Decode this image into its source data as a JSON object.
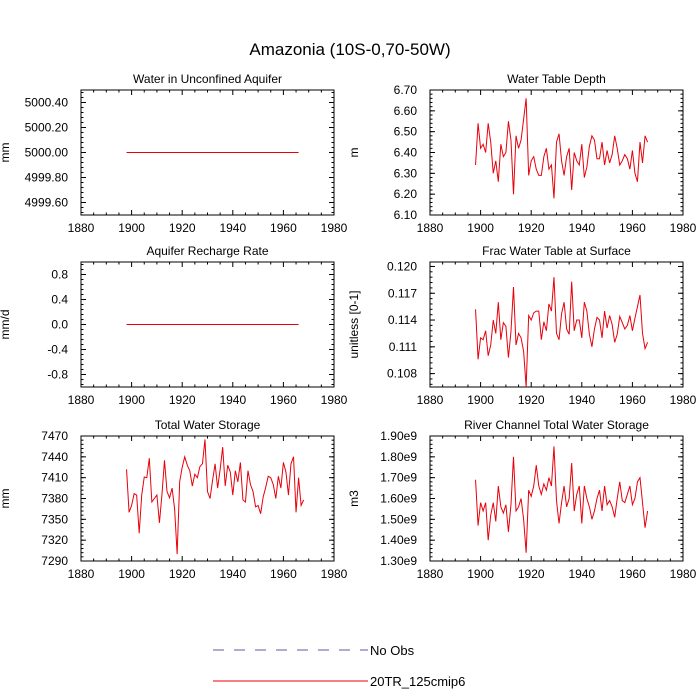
{
  "title": "Amazonia (10S-0,70-50W)",
  "legend": {
    "entries": [
      {
        "label": "No Obs",
        "color": "#5a5aa8",
        "dash": true
      },
      {
        "label": "20TR_125cmip6",
        "color": "#e8000b",
        "dash": false
      }
    ]
  },
  "chart_data": [
    {
      "type": "line",
      "title": "Water in Unconfined Aquifer",
      "xlabel": "",
      "ylabel": "mm",
      "xlim": [
        1880,
        1980
      ],
      "xticks": [
        1880,
        1900,
        1920,
        1940,
        1960,
        1980
      ],
      "ylim": [
        4999.5,
        5000.5
      ],
      "yticks": [
        4999.6,
        4999.8,
        5000.0,
        5000.2,
        5000.4
      ],
      "ytick_labels": [
        "4999.60",
        "4999.80",
        "5000.00",
        "5000.20",
        "5000.40"
      ],
      "series": [
        {
          "name": "20TR_125cmip6",
          "x_start": 1898,
          "values": [
            5000,
            5000,
            5000,
            5000,
            5000,
            5000,
            5000,
            5000,
            5000,
            5000,
            5000,
            5000,
            5000,
            5000,
            5000,
            5000,
            5000,
            5000,
            5000,
            5000,
            5000,
            5000,
            5000,
            5000,
            5000,
            5000,
            5000,
            5000,
            5000,
            5000,
            5000,
            5000,
            5000,
            5000,
            5000,
            5000,
            5000,
            5000,
            5000,
            5000,
            5000,
            5000,
            5000,
            5000,
            5000,
            5000,
            5000,
            5000,
            5000,
            5000,
            5000,
            5000,
            5000,
            5000,
            5000,
            5000,
            5000,
            5000,
            5000,
            5000,
            5000,
            5000,
            5000,
            5000,
            5000,
            5000,
            5000,
            5000,
            5000
          ]
        }
      ]
    },
    {
      "type": "line",
      "title": "Water Table Depth",
      "xlabel": "",
      "ylabel": "m",
      "xlim": [
        1880,
        1980
      ],
      "xticks": [
        1880,
        1900,
        1920,
        1940,
        1960,
        1980
      ],
      "ylim": [
        6.1,
        6.7
      ],
      "yticks": [
        6.1,
        6.2,
        6.3,
        6.4,
        6.5,
        6.6,
        6.7
      ],
      "ytick_labels": [
        "6.10",
        "6.20",
        "6.30",
        "6.40",
        "6.50",
        "6.60",
        "6.70"
      ],
      "series": [
        {
          "name": "20TR_125cmip6",
          "x_start": 1898,
          "values": [
            6.34,
            6.54,
            6.42,
            6.44,
            6.4,
            6.54,
            6.45,
            6.3,
            6.36,
            6.26,
            6.44,
            6.38,
            6.4,
            6.55,
            6.46,
            6.2,
            6.48,
            6.42,
            6.46,
            6.56,
            6.66,
            6.29,
            6.36,
            6.38,
            6.32,
            6.29,
            6.29,
            6.38,
            6.42,
            6.32,
            6.34,
            6.18,
            6.45,
            6.49,
            6.36,
            6.29,
            6.38,
            6.42,
            6.22,
            6.4,
            6.36,
            6.34,
            6.44,
            6.28,
            6.33,
            6.43,
            6.48,
            6.46,
            6.37,
            6.37,
            6.45,
            6.34,
            6.41,
            6.35,
            6.39,
            6.48,
            6.42,
            6.34,
            6.36,
            6.39,
            6.37,
            6.32,
            6.41,
            6.3,
            6.26,
            6.45,
            6.35,
            6.48,
            6.45
          ]
        }
      ]
    },
    {
      "type": "line",
      "title": "Aquifer Recharge Rate",
      "xlabel": "",
      "ylabel": "mm/d",
      "xlim": [
        1880,
        1980
      ],
      "xticks": [
        1880,
        1900,
        1920,
        1940,
        1960,
        1980
      ],
      "ylim": [
        -1.0,
        1.0
      ],
      "yticks": [
        -0.8,
        -0.4,
        0.0,
        0.4,
        0.8
      ],
      "ytick_labels": [
        "-0.8",
        "-0.4",
        "0.0",
        "0.4",
        "0.8"
      ],
      "series": [
        {
          "name": "20TR_125cmip6",
          "x_start": 1898,
          "values": [
            0,
            0,
            0,
            0,
            0,
            0,
            0,
            0,
            0,
            0,
            0,
            0,
            0,
            0,
            0,
            0,
            0,
            0,
            0,
            0,
            0,
            0,
            0,
            0,
            0,
            0,
            0,
            0,
            0,
            0,
            0,
            0,
            0,
            0,
            0,
            0,
            0,
            0,
            0,
            0,
            0,
            0,
            0,
            0,
            0,
            0,
            0,
            0,
            0,
            0,
            0,
            0,
            0,
            0,
            0,
            0,
            0,
            0,
            0,
            0,
            0,
            0,
            0,
            0,
            0,
            0,
            0,
            0,
            0
          ]
        }
      ]
    },
    {
      "type": "line",
      "title": "Frac Water Table at Surface",
      "xlabel": "",
      "ylabel": "unitless [0-1]",
      "xlim": [
        1880,
        1980
      ],
      "xticks": [
        1880,
        1900,
        1920,
        1940,
        1960,
        1980
      ],
      "ylim": [
        0.1065,
        0.1205
      ],
      "yticks": [
        0.108,
        0.111,
        0.114,
        0.117,
        0.12
      ],
      "ytick_labels": [
        "0.108",
        "0.111",
        "0.114",
        "0.117",
        "0.120"
      ],
      "series": [
        {
          "name": "20TR_125cmip6",
          "x_start": 1898,
          "values": [
            0.1152,
            0.1096,
            0.112,
            0.1118,
            0.1128,
            0.11,
            0.1112,
            0.114,
            0.1125,
            0.116,
            0.1118,
            0.1137,
            0.1133,
            0.1098,
            0.1127,
            0.1177,
            0.1112,
            0.1125,
            0.112,
            0.1105,
            0.1065,
            0.1145,
            0.114,
            0.1148,
            0.115,
            0.115,
            0.1118,
            0.1138,
            0.1128,
            0.1158,
            0.115,
            0.1188,
            0.1125,
            0.1118,
            0.1147,
            0.116,
            0.113,
            0.1124,
            0.1183,
            0.1128,
            0.114,
            0.114,
            0.112,
            0.116,
            0.115,
            0.1124,
            0.111,
            0.113,
            0.1143,
            0.114,
            0.112,
            0.115,
            0.1131,
            0.1145,
            0.1135,
            0.1115,
            0.1124,
            0.1144,
            0.1137,
            0.113,
            0.1134,
            0.1145,
            0.1128,
            0.1142,
            0.1155,
            0.1168,
            0.1125,
            0.1108,
            0.1115
          ]
        }
      ]
    },
    {
      "type": "line",
      "title": "Total Water Storage",
      "xlabel": "",
      "ylabel": "mm",
      "xlim": [
        1880,
        1980
      ],
      "xticks": [
        1880,
        1900,
        1920,
        1940,
        1960,
        1980
      ],
      "ylim": [
        7290,
        7470
      ],
      "yticks": [
        7290,
        7320,
        7350,
        7380,
        7410,
        7440,
        7470
      ],
      "ytick_labels": [
        "7290",
        "7320",
        "7350",
        "7380",
        "7410",
        "7440",
        "7470"
      ],
      "series": [
        {
          "name": "20TR_125cmip6",
          "x_start": 1898,
          "values": [
            7422,
            7360,
            7370,
            7387,
            7385,
            7330,
            7385,
            7411,
            7410,
            7438,
            7375,
            7380,
            7385,
            7345,
            7386,
            7435,
            7390,
            7381,
            7395,
            7365,
            7300,
            7404,
            7425,
            7440,
            7428,
            7420,
            7398,
            7415,
            7410,
            7426,
            7430,
            7465,
            7390,
            7380,
            7406,
            7430,
            7395,
            7422,
            7454,
            7398,
            7428,
            7418,
            7385,
            7420,
            7404,
            7432,
            7378,
            7375,
            7420,
            7400,
            7390,
            7368,
            7370,
            7358,
            7382,
            7396,
            7412,
            7410,
            7400,
            7380,
            7412,
            7395,
            7432,
            7418,
            7385,
            7430,
            7440,
            7360,
            7410,
            7370,
            7378
          ]
        }
      ]
    },
    {
      "type": "line",
      "title": "River Channel Total Water Storage",
      "xlabel": "",
      "ylabel": "m3",
      "xlim": [
        1880,
        1980
      ],
      "xticks": [
        1880,
        1900,
        1920,
        1940,
        1960,
        1980
      ],
      "ylim": [
        1300000000,
        1900000000
      ],
      "yticks": [
        1300000000,
        1400000000,
        1500000000,
        1600000000,
        1700000000,
        1800000000,
        1900000000
      ],
      "ytick_labels": [
        "1.30e9",
        "1.40e9",
        "1.50e9",
        "1.60e9",
        "1.70e9",
        "1.80e9",
        "1.90e9"
      ],
      "series": [
        {
          "name": "20TR_125cmip6",
          "x_start": 1898,
          "values": [
            1690000000,
            1470000000,
            1580000000,
            1540000000,
            1580000000,
            1400000000,
            1520000000,
            1580000000,
            1490000000,
            1660000000,
            1560000000,
            1530000000,
            1570000000,
            1440000000,
            1570000000,
            1800000000,
            1540000000,
            1560000000,
            1600000000,
            1500000000,
            1340000000,
            1640000000,
            1610000000,
            1660000000,
            1760000000,
            1660000000,
            1620000000,
            1670000000,
            1640000000,
            1700000000,
            1660000000,
            1850000000,
            1590000000,
            1480000000,
            1580000000,
            1660000000,
            1560000000,
            1600000000,
            1770000000,
            1540000000,
            1620000000,
            1660000000,
            1480000000,
            1660000000,
            1600000000,
            1560000000,
            1500000000,
            1540000000,
            1600000000,
            1640000000,
            1540000000,
            1660000000,
            1570000000,
            1590000000,
            1560000000,
            1510000000,
            1600000000,
            1680000000,
            1590000000,
            1580000000,
            1620000000,
            1660000000,
            1570000000,
            1600000000,
            1680000000,
            1700000000,
            1580000000,
            1460000000,
            1540000000
          ]
        }
      ]
    }
  ]
}
